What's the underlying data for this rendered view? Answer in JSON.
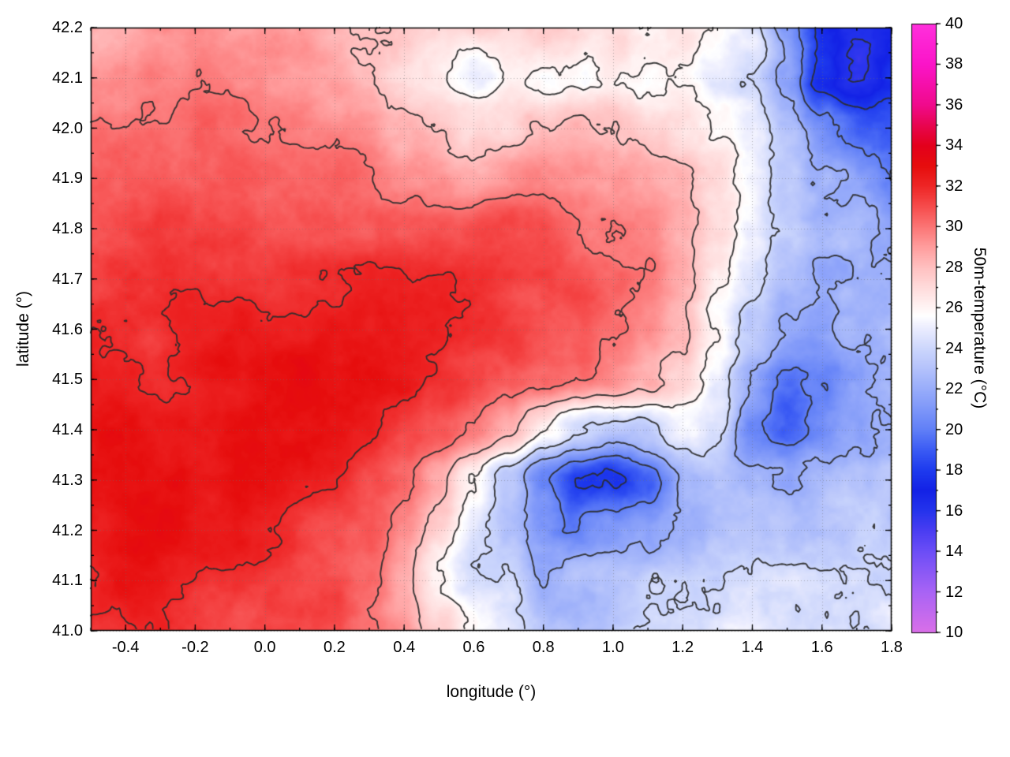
{
  "chart_data": {
    "type": "heatmap",
    "title": "",
    "xlabel": "longitude (°)",
    "ylabel": "latitude (°)",
    "colorbar_label": "50m-temperature (°C)",
    "xlim": [
      -0.5,
      1.8
    ],
    "ylim": [
      41.0,
      42.2
    ],
    "clim": [
      10,
      40
    ],
    "grid": true,
    "x_ticks": {
      "values": [
        -0.4,
        -0.2,
        0.0,
        0.2,
        0.4,
        0.6,
        0.8,
        1.0,
        1.2,
        1.4,
        1.6,
        1.8
      ],
      "labels": [
        "-0.4",
        "-0.2",
        "0.0",
        "0.2",
        "0.4",
        "0.6",
        "0.8",
        "1.0",
        "1.2",
        "1.4",
        "1.6",
        "1.8"
      ],
      "minor_step": 0.1
    },
    "y_ticks": {
      "values": [
        41.0,
        41.1,
        41.2,
        41.3,
        41.4,
        41.5,
        41.6,
        41.7,
        41.8,
        41.9,
        42.0,
        42.1,
        42.2
      ],
      "labels": [
        "41.0",
        "41.1",
        "41.2",
        "41.3",
        "41.4",
        "41.5",
        "41.6",
        "41.7",
        "41.8",
        "41.9",
        "42.0",
        "42.1",
        "42.2"
      ],
      "minor_step": 0.05
    },
    "colorbar_ticks": {
      "values": [
        10,
        12,
        14,
        16,
        18,
        20,
        22,
        24,
        26,
        28,
        30,
        32,
        34,
        36,
        38,
        40
      ],
      "labels": [
        "10",
        "12",
        "14",
        "16",
        "18",
        "20",
        "22",
        "24",
        "26",
        "28",
        "30",
        "32",
        "34",
        "36",
        "38",
        "40"
      ],
      "minor_step": 1
    },
    "contour_levels": [
      16,
      18,
      20,
      22,
      24,
      26,
      28,
      30,
      32
    ],
    "lon_nodes": [
      -0.5,
      -0.4,
      -0.3,
      -0.2,
      -0.1,
      0.0,
      0.1,
      0.2,
      0.3,
      0.4,
      0.5,
      0.6,
      0.7,
      0.8,
      0.9,
      1.0,
      1.1,
      1.2,
      1.3,
      1.4,
      1.5,
      1.6,
      1.7,
      1.8
    ],
    "lat_nodes": [
      42.2,
      42.1,
      42.0,
      41.9,
      41.8,
      41.7,
      41.6,
      41.5,
      41.4,
      41.3,
      41.2,
      41.1,
      41.0
    ],
    "temperature_grid": [
      [
        29.0,
        29.2,
        29.5,
        29.4,
        29.2,
        29.0,
        28.8,
        28.5,
        28.0,
        27.5,
        27.2,
        27.6,
        27.0,
        27.8,
        27.5,
        27.0,
        26.4,
        26.8,
        26.0,
        24.5,
        20.5,
        16.8,
        15.6,
        16.5
      ],
      [
        29.6,
        29.9,
        30.0,
        29.9,
        29.6,
        29.4,
        29.2,
        28.9,
        27.6,
        26.6,
        26.3,
        24.9,
        26.2,
        25.4,
        25.8,
        26.6,
        26.2,
        26.0,
        25.4,
        24.2,
        21.5,
        17.4,
        15.5,
        17.2
      ],
      [
        30.0,
        30.1,
        30.3,
        30.2,
        30.0,
        29.8,
        29.6,
        29.2,
        28.6,
        28.0,
        27.6,
        27.0,
        26.6,
        27.8,
        28.4,
        28.0,
        27.5,
        27.0,
        26.2,
        25.0,
        23.0,
        20.8,
        19.8,
        19.6
      ],
      [
        30.4,
        30.5,
        30.8,
        30.6,
        30.5,
        30.2,
        30.1,
        30.0,
        29.6,
        29.2,
        29.0,
        28.6,
        28.9,
        29.4,
        29.4,
        29.0,
        28.6,
        28.0,
        27.0,
        25.6,
        24.0,
        22.4,
        21.8,
        21.0
      ],
      [
        30.8,
        31.0,
        31.3,
        31.1,
        31.0,
        30.7,
        30.8,
        30.9,
        30.5,
        30.4,
        30.6,
        30.9,
        31.0,
        30.9,
        30.5,
        30.0,
        29.5,
        28.8,
        27.4,
        25.0,
        23.4,
        22.5,
        22.8,
        21.8
      ],
      [
        31.0,
        31.4,
        31.5,
        31.4,
        31.4,
        31.4,
        31.6,
        31.8,
        32.0,
        32.1,
        32.3,
        32.0,
        31.6,
        31.5,
        31.0,
        30.5,
        30.0,
        29.0,
        27.0,
        24.5,
        22.8,
        21.8,
        22.4,
        22.0
      ],
      [
        31.8,
        32.0,
        31.6,
        31.9,
        32.0,
        32.1,
        32.3,
        32.5,
        32.4,
        32.4,
        32.4,
        32.0,
        31.6,
        31.0,
        30.6,
        30.0,
        29.4,
        28.4,
        26.0,
        23.4,
        21.8,
        21.4,
        22.0,
        22.4
      ],
      [
        32.4,
        32.4,
        32.0,
        32.1,
        32.4,
        32.6,
        32.8,
        32.8,
        32.6,
        32.5,
        32.1,
        31.6,
        31.0,
        30.5,
        29.9,
        29.0,
        28.0,
        26.5,
        24.4,
        21.0,
        19.4,
        20.4,
        21.4,
        22.0
      ],
      [
        32.8,
        32.9,
        32.6,
        32.9,
        33.0,
        33.0,
        32.9,
        32.5,
        32.1,
        31.6,
        31.0,
        30.0,
        28.5,
        26.2,
        24.0,
        23.0,
        23.4,
        24.8,
        24.0,
        20.2,
        18.6,
        19.8,
        21.0,
        21.5
      ],
      [
        33.0,
        33.1,
        32.9,
        33.0,
        33.0,
        32.9,
        32.5,
        32.1,
        31.2,
        30.2,
        28.6,
        26.2,
        23.2,
        20.0,
        18.0,
        17.6,
        19.0,
        21.8,
        22.8,
        22.0,
        21.4,
        22.0,
        22.4,
        22.9
      ],
      [
        32.6,
        32.9,
        32.9,
        32.6,
        32.5,
        32.4,
        32.1,
        31.6,
        31.0,
        30.0,
        28.0,
        25.6,
        23.6,
        21.2,
        20.0,
        21.0,
        21.6,
        22.4,
        22.9,
        22.9,
        22.9,
        23.0,
        23.2,
        23.4
      ],
      [
        32.1,
        32.4,
        32.4,
        32.1,
        32.0,
        32.0,
        31.6,
        31.1,
        30.5,
        29.0,
        26.6,
        25.0,
        24.4,
        22.0,
        22.9,
        23.4,
        23.5,
        23.5,
        23.6,
        23.9,
        23.9,
        23.9,
        24.0,
        24.0
      ],
      [
        31.6,
        32.0,
        32.0,
        31.9,
        31.6,
        31.5,
        31.5,
        31.0,
        30.5,
        29.5,
        27.5,
        25.6,
        24.5,
        23.6,
        23.9,
        24.0,
        24.0,
        24.0,
        24.1,
        24.4,
        24.4,
        24.4,
        24.4,
        24.5
      ]
    ],
    "palette_stops": [
      [
        10,
        "#d96fe8"
      ],
      [
        12,
        "#a863f5"
      ],
      [
        14,
        "#6b4df6"
      ],
      [
        15,
        "#4a3df2"
      ],
      [
        16,
        "#2433ec"
      ],
      [
        17,
        "#1322e6"
      ],
      [
        18,
        "#1e3bee"
      ],
      [
        19,
        "#3c5cf4"
      ],
      [
        20,
        "#6180f7"
      ],
      [
        21,
        "#7e97f9"
      ],
      [
        22,
        "#99adfa"
      ],
      [
        23,
        "#b4c2fb"
      ],
      [
        24,
        "#cdd7fc"
      ],
      [
        25,
        "#ecedfe"
      ],
      [
        25.6,
        "#ffffff"
      ],
      [
        26.4,
        "#ffeaea"
      ],
      [
        27,
        "#ffdbdb"
      ],
      [
        28,
        "#ffc0c0"
      ],
      [
        29,
        "#ff9d9d"
      ],
      [
        30,
        "#fb7575"
      ],
      [
        31,
        "#f64c4c"
      ],
      [
        32,
        "#ee2626"
      ],
      [
        33,
        "#e60d0d"
      ],
      [
        34,
        "#e3001c"
      ],
      [
        35,
        "#e80550"
      ],
      [
        36,
        "#f00a8c"
      ],
      [
        38,
        "#fb14c8"
      ],
      [
        40,
        "#ff30dc"
      ]
    ],
    "contour_color": "#2d2d2d",
    "grid_color": "#6e6e6e"
  }
}
